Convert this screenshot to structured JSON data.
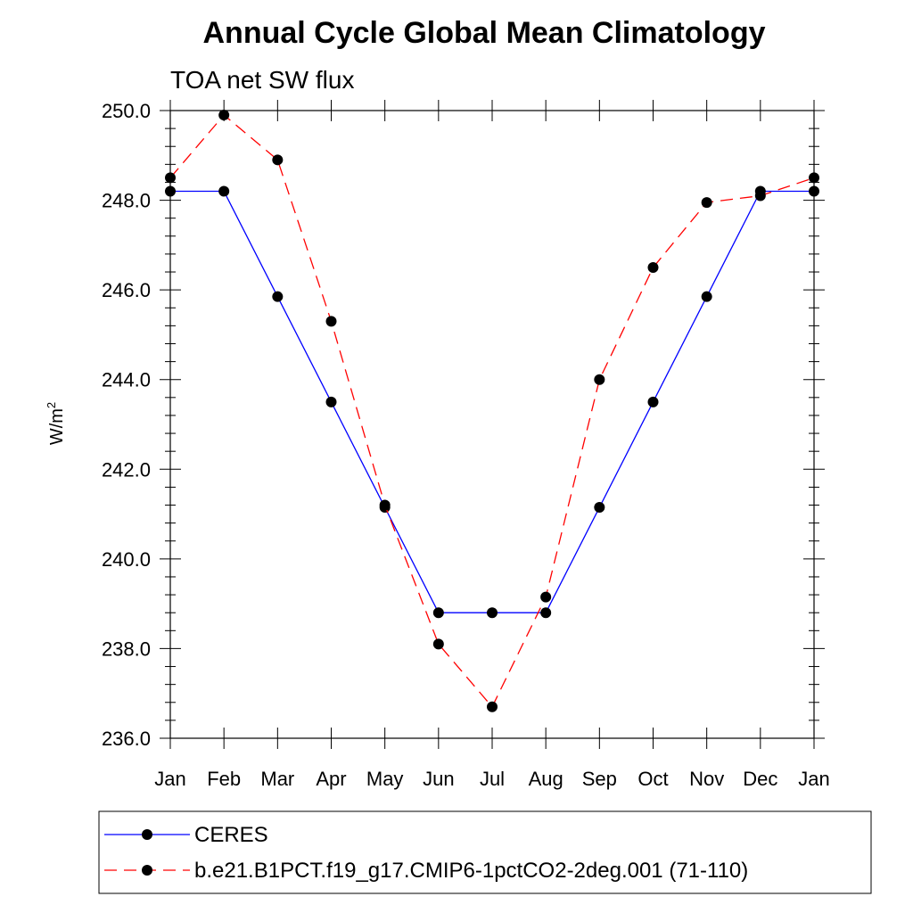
{
  "chart_data": {
    "type": "line",
    "title": "Annual Cycle Global Mean Climatology",
    "subtitle": "TOA net SW flux",
    "ylabel_base": "W/m",
    "ylabel_exp": "2",
    "xlabel": "",
    "ylim": [
      236.0,
      250.0
    ],
    "yticks": [
      236.0,
      238.0,
      240.0,
      242.0,
      244.0,
      246.0,
      248.0,
      250.0
    ],
    "ytick_labels": [
      "236.0",
      "238.0",
      "240.0",
      "242.0",
      "244.0",
      "246.0",
      "248.0",
      "250.0"
    ],
    "categories": [
      "Jan",
      "Feb",
      "Mar",
      "Apr",
      "May",
      "Jun",
      "Jul",
      "Aug",
      "Sep",
      "Oct",
      "Nov",
      "Dec",
      "Jan"
    ],
    "series": [
      {
        "name": "CERES",
        "color": "#0000ff",
        "style": "solid",
        "values": [
          248.2,
          248.2,
          245.85,
          243.5,
          241.15,
          238.8,
          238.8,
          238.8,
          241.15,
          243.5,
          245.85,
          248.2,
          248.2
        ]
      },
      {
        "name": "b.e21.B1PCT.f19_g17.CMIP6-1pctCO2-2deg.001 (71-110)",
        "color": "#ff0000",
        "style": "dashed",
        "values": [
          248.5,
          249.9,
          248.9,
          245.3,
          241.2,
          238.1,
          236.7,
          239.15,
          244.0,
          246.5,
          247.95,
          248.1,
          248.5
        ]
      }
    ],
    "legend_position": "bottom"
  }
}
